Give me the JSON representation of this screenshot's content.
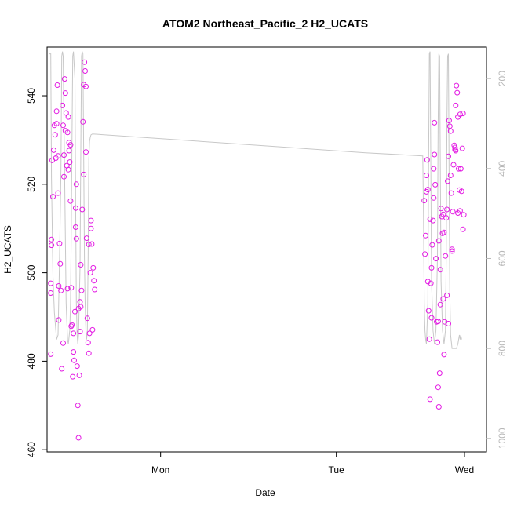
{
  "chart_data": {
    "type": "scatter",
    "title": "ATOM2 Northeast_Pacific_2 H2_UCATS",
    "xlabel": "Date",
    "ylabel": "H2_UCATS",
    "x_ticks": [
      "Mon",
      "Tue",
      "Wed"
    ],
    "x_range_hours": [
      -15.5,
      44.5
    ],
    "y_ticks": [
      460,
      480,
      500,
      520,
      540
    ],
    "ylim": [
      459.5,
      551
    ],
    "y2_ticks": [
      200,
      400,
      600,
      800,
      1000
    ],
    "y2_range_reversed": [
      1030,
      130
    ],
    "point_color": "#e31ae3",
    "line_color": "#c8c8c8",
    "grid": false,
    "series": [
      {
        "points": [
          [
            -15.0,
            481.6
          ],
          [
            -15.0,
            497.6
          ],
          [
            -15.0,
            495.4
          ],
          [
            -14.9,
            507.5
          ],
          [
            -14.9,
            506.2
          ],
          [
            -14.8,
            525.4
          ],
          [
            -14.7,
            517.2
          ],
          [
            -14.6,
            527.7
          ],
          [
            -14.5,
            533.3
          ],
          [
            -14.4,
            531.2
          ],
          [
            -14.3,
            525.9
          ],
          [
            -14.2,
            536.5
          ],
          [
            -14.2,
            533.7
          ],
          [
            -14.1,
            542.4
          ],
          [
            -14.0,
            526.4
          ],
          [
            -13.9,
            497.0
          ],
          [
            -13.9,
            489.3
          ],
          [
            -13.8,
            506.6
          ],
          [
            -13.7,
            502.0
          ],
          [
            -13.6,
            496.0
          ],
          [
            -13.5,
            478.3
          ],
          [
            -13.4,
            537.8
          ],
          [
            -13.3,
            533.3
          ],
          [
            -13.2,
            526.6
          ],
          [
            -13.1,
            543.8
          ],
          [
            -13.0,
            540.6
          ],
          [
            -13.0,
            532.1
          ],
          [
            -12.9,
            536.1
          ],
          [
            -12.8,
            524.2
          ],
          [
            -12.7,
            531.7
          ],
          [
            -12.6,
            523.3
          ],
          [
            -12.5,
            527.6
          ],
          [
            -12.5,
            529.4
          ],
          [
            -12.4,
            525.0
          ],
          [
            -12.3,
            516.2
          ],
          [
            -12.2,
            496.6
          ],
          [
            -12.2,
            487.9
          ],
          [
            -12.1,
            488.2
          ],
          [
            -12.0,
            476.5
          ],
          [
            -11.9,
            482.1
          ],
          [
            -11.9,
            486.3
          ],
          [
            -11.8,
            480.2
          ],
          [
            -11.7,
            491.2
          ],
          [
            -11.6,
            510.3
          ],
          [
            -11.5,
            520.0
          ],
          [
            -11.5,
            507.7
          ],
          [
            -11.4,
            478.9
          ],
          [
            -11.3,
            470.0
          ],
          [
            -11.2,
            462.7
          ],
          [
            -11.1,
            476.8
          ],
          [
            -11.0,
            486.7
          ],
          [
            -10.9,
            501.8
          ],
          [
            -10.8,
            496.0
          ],
          [
            -10.7,
            514.3
          ],
          [
            -10.6,
            534.1
          ],
          [
            -10.5,
            542.5
          ],
          [
            -10.4,
            547.6
          ],
          [
            -10.3,
            545.6
          ],
          [
            -10.2,
            527.3
          ],
          [
            -10.1,
            507.8
          ],
          [
            -10.0,
            489.7
          ],
          [
            -9.9,
            484.2
          ],
          [
            -9.8,
            481.8
          ],
          [
            -9.7,
            486.3
          ],
          [
            -9.6,
            500.0
          ],
          [
            -9.5,
            511.8
          ],
          [
            -9.4,
            506.5
          ],
          [
            -9.3,
            487.1
          ],
          [
            -9.2,
            501.1
          ],
          [
            -9.1,
            498.2
          ],
          [
            -9.0,
            496.2
          ],
          [
            -12.6,
            535.2
          ],
          [
            -13.2,
            521.7
          ],
          [
            -11.6,
            514.6
          ],
          [
            -10.5,
            522.2
          ],
          [
            -11.0,
            493.4
          ],
          [
            -10.9,
            492.3
          ],
          [
            -9.5,
            510.0
          ],
          [
            -12.3,
            528.9
          ],
          [
            -13.3,
            484.1
          ],
          [
            -14.0,
            518.0
          ],
          [
            -12.7,
            496.4
          ],
          [
            -11.2,
            491.9
          ],
          [
            -10.2,
            542.1
          ],
          [
            -9.8,
            506.4
          ],
          [
            36.0,
            516.3
          ],
          [
            36.1,
            504.2
          ],
          [
            36.2,
            508.4
          ],
          [
            36.3,
            522.0
          ],
          [
            36.4,
            525.5
          ],
          [
            36.5,
            518.8
          ],
          [
            36.6,
            491.4
          ],
          [
            36.7,
            485.0
          ],
          [
            36.8,
            471.4
          ],
          [
            36.9,
            497.6
          ],
          [
            37.0,
            501.1
          ],
          [
            37.1,
            506.3
          ],
          [
            37.2,
            511.8
          ],
          [
            37.3,
            523.5
          ],
          [
            37.4,
            533.9
          ],
          [
            37.5,
            519.9
          ],
          [
            37.6,
            503.2
          ],
          [
            37.7,
            488.9
          ],
          [
            37.8,
            484.3
          ],
          [
            37.9,
            474.1
          ],
          [
            38.0,
            469.7
          ],
          [
            38.1,
            477.3
          ],
          [
            38.2,
            492.8
          ],
          [
            38.3,
            514.5
          ],
          [
            38.4,
            512.7
          ],
          [
            38.5,
            508.9
          ],
          [
            38.6,
            494.1
          ],
          [
            38.7,
            481.5
          ],
          [
            38.8,
            488.9
          ],
          [
            38.9,
            503.8
          ],
          [
            39.0,
            512.4
          ],
          [
            39.1,
            514.3
          ],
          [
            39.2,
            520.7
          ],
          [
            39.3,
            526.3
          ],
          [
            39.4,
            534.4
          ],
          [
            39.5,
            533.1
          ],
          [
            39.6,
            522.0
          ],
          [
            39.7,
            518.0
          ],
          [
            39.8,
            505.3
          ],
          [
            39.9,
            513.8
          ],
          [
            40.0,
            524.4
          ],
          [
            40.1,
            528.8
          ],
          [
            40.2,
            527.8
          ],
          [
            40.3,
            537.8
          ],
          [
            40.4,
            542.3
          ],
          [
            40.5,
            540.7
          ],
          [
            40.6,
            535.2
          ],
          [
            40.7,
            523.5
          ],
          [
            40.8,
            518.7
          ],
          [
            40.9,
            514.0
          ],
          [
            41.0,
            523.5
          ],
          [
            41.1,
            518.4
          ],
          [
            41.2,
            528.1
          ],
          [
            41.3,
            509.8
          ],
          [
            41.4,
            513.1
          ],
          [
            36.3,
            518.3
          ],
          [
            36.8,
            512.1
          ],
          [
            37.4,
            526.7
          ],
          [
            38.2,
            500.7
          ],
          [
            38.7,
            509.1
          ],
          [
            39.3,
            488.5
          ],
          [
            39.8,
            504.9
          ],
          [
            40.3,
            527.6
          ],
          [
            40.9,
            535.8
          ],
          [
            41.3,
            536.0
          ],
          [
            37.0,
            489.8
          ],
          [
            37.9,
            489.0
          ],
          [
            38.6,
            513.2
          ],
          [
            39.1,
            494.9
          ],
          [
            40.6,
            513.5
          ],
          [
            36.5,
            498.0
          ],
          [
            37.3,
            516.9
          ],
          [
            38.0,
            507.2
          ],
          [
            39.6,
            532.0
          ],
          [
            40.2,
            528.3
          ]
        ]
      }
    ],
    "pressure_line": [
      [
        -15.2,
        145
      ],
      [
        -15.0,
        145
      ],
      [
        -14.9,
        420
      ],
      [
        -14.7,
        640
      ],
      [
        -14.5,
        720
      ],
      [
        -14.3,
        760
      ],
      [
        -14.2,
        780
      ],
      [
        -14.0,
        770
      ],
      [
        -13.8,
        600
      ],
      [
        -13.6,
        400
      ],
      [
        -13.5,
        150
      ],
      [
        -13.4,
        140
      ],
      [
        -13.3,
        150
      ],
      [
        -13.1,
        420
      ],
      [
        -12.9,
        700
      ],
      [
        -12.7,
        780
      ],
      [
        -12.6,
        790
      ],
      [
        -12.4,
        760
      ],
      [
        -12.3,
        700
      ],
      [
        -12.2,
        540
      ],
      [
        -12.1,
        350
      ],
      [
        -12.0,
        150
      ],
      [
        -11.9,
        140
      ],
      [
        -11.7,
        200
      ],
      [
        -11.6,
        480
      ],
      [
        -11.5,
        700
      ],
      [
        -11.4,
        770
      ],
      [
        -11.3,
        790
      ],
      [
        -11.2,
        770
      ],
      [
        -11.0,
        620
      ],
      [
        -10.9,
        380
      ],
      [
        -10.8,
        150
      ],
      [
        -10.7,
        140
      ],
      [
        -10.6,
        145
      ],
      [
        -10.5,
        380
      ],
      [
        -10.4,
        600
      ],
      [
        -10.3,
        700
      ],
      [
        -10.2,
        760
      ],
      [
        -10.1,
        780
      ],
      [
        -10.0,
        760
      ],
      [
        -9.9,
        600
      ],
      [
        -9.8,
        380
      ],
      [
        -9.7,
        340
      ],
      [
        -9.6,
        330
      ],
      [
        -9.5,
        325
      ],
      [
        -9.3,
        323
      ],
      [
        28.0,
        365
      ],
      [
        35.8,
        372
      ],
      [
        35.9,
        500
      ],
      [
        36.0,
        700
      ],
      [
        36.1,
        760
      ],
      [
        36.2,
        780
      ],
      [
        36.3,
        790
      ],
      [
        36.5,
        700
      ],
      [
        36.6,
        380
      ],
      [
        36.7,
        145
      ],
      [
        36.8,
        140
      ],
      [
        36.9,
        400
      ],
      [
        37.0,
        650
      ],
      [
        37.2,
        760
      ],
      [
        37.4,
        790
      ],
      [
        37.6,
        760
      ],
      [
        37.8,
        600
      ],
      [
        37.9,
        300
      ],
      [
        38.0,
        145
      ],
      [
        38.1,
        150
      ],
      [
        38.2,
        400
      ],
      [
        38.3,
        650
      ],
      [
        38.5,
        760
      ],
      [
        38.7,
        790
      ],
      [
        38.9,
        760
      ],
      [
        39.0,
        600
      ],
      [
        39.1,
        300
      ],
      [
        39.2,
        150
      ],
      [
        39.3,
        145
      ],
      [
        39.4,
        420
      ],
      [
        39.5,
        680
      ],
      [
        39.6,
        770
      ],
      [
        39.8,
        800
      ],
      [
        40.0,
        800
      ],
      [
        40.4,
        800
      ],
      [
        40.6,
        790
      ],
      [
        40.7,
        780
      ],
      [
        40.8,
        770
      ],
      [
        40.9,
        780
      ],
      [
        41.0,
        770
      ],
      [
        41.1,
        780
      ]
    ]
  }
}
